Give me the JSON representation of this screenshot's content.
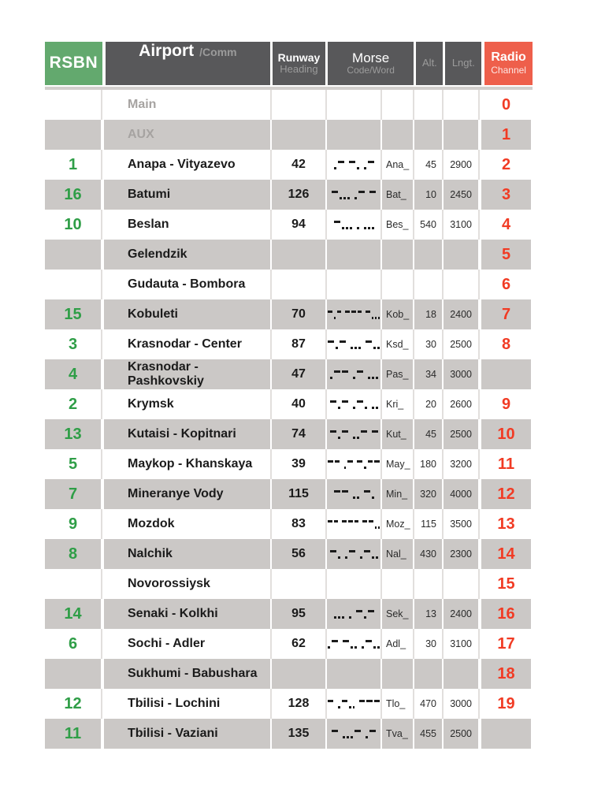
{
  "chart_data": {
    "type": "table",
    "title": "RSBN radio channel reference table",
    "header": {
      "rsbn": "RSBN",
      "airport": "Airport",
      "airport_sub": "/Comm",
      "runway": "Runway",
      "runway_sub": "Heading",
      "morse": "Morse",
      "morse_sub": "Code/Word",
      "alt": "Alt.",
      "lngt": "Lngt.",
      "radio": "Radio",
      "radio_sub": "Channel"
    },
    "colors": {
      "rsbn_header_green": "#63a96e",
      "rsbn_number_green": "#2f9e47",
      "radio_header_red": "#ee5f4b",
      "radio_number_red": "#f13b24",
      "dark_header_gray": "#58585a",
      "alt_row_gray": "#cbc8c6",
      "muted_text_gray": "#a6a3a1"
    },
    "rows": [
      {
        "rsbn": "",
        "airport": "Main",
        "muted": true,
        "runway": "",
        "morse": "",
        "word": "",
        "alt": "",
        "lngt": "",
        "channel": "0"
      },
      {
        "rsbn": "",
        "airport": "AUX",
        "muted": true,
        "runway": "",
        "morse": "",
        "word": "",
        "alt": "",
        "lngt": "",
        "channel": "1"
      },
      {
        "rsbn": "1",
        "airport": "Anapa - Vityazevo",
        "muted": false,
        "runway": "42",
        "morse": ".- -. .-",
        "word": "Ana_",
        "alt": "45",
        "lngt": "2900",
        "channel": "2"
      },
      {
        "rsbn": "16",
        "airport": "Batumi",
        "muted": false,
        "runway": "126",
        "morse": "-... .- -",
        "word": "Bat_",
        "alt": "10",
        "lngt": "2450",
        "channel": "3"
      },
      {
        "rsbn": "10",
        "airport": "Beslan",
        "muted": false,
        "runway": "94",
        "morse": "-... . ...",
        "word": "Bes_",
        "alt": "540",
        "lngt": "3100",
        "channel": "4"
      },
      {
        "rsbn": "",
        "airport": "Gelendzik",
        "muted": false,
        "runway": "",
        "morse": "",
        "word": "",
        "alt": "",
        "lngt": "",
        "channel": "5"
      },
      {
        "rsbn": "",
        "airport": "Gudauta - Bombora",
        "muted": false,
        "runway": "",
        "morse": "",
        "word": "",
        "alt": "",
        "lngt": "",
        "channel": "6"
      },
      {
        "rsbn": "15",
        "airport": "Kobuleti",
        "muted": false,
        "runway": "70",
        "morse": "-.- --- -...",
        "word": "Kob_",
        "alt": "18",
        "lngt": "2400",
        "channel": "7"
      },
      {
        "rsbn": "3",
        "airport": "Krasnodar - Center",
        "muted": false,
        "runway": "87",
        "morse": "-.- ... -..",
        "word": "Ksd_",
        "alt": "30",
        "lngt": "2500",
        "channel": "8"
      },
      {
        "rsbn": "4",
        "airport": "Krasnodar - Pashkovskiy",
        "muted": false,
        "runway": "47",
        "morse": ".-- .- ...",
        "word": "Pas_",
        "alt": "34",
        "lngt": "3000",
        "channel": ""
      },
      {
        "rsbn": "2",
        "airport": "Krymsk",
        "muted": false,
        "runway": "40",
        "morse": "-.- .-. ..",
        "word": "Kri_",
        "alt": "20",
        "lngt": "2600",
        "channel": "9"
      },
      {
        "rsbn": "13",
        "airport": "Kutaisi - Kopitnari",
        "muted": false,
        "runway": "74",
        "morse": "-.- ..- -",
        "word": "Kut_",
        "alt": "45",
        "lngt": "2500",
        "channel": "10"
      },
      {
        "rsbn": "5",
        "airport": "Maykop - Khanskaya",
        "muted": false,
        "runway": "39",
        "morse": "-- .- -.--",
        "word": "May_",
        "alt": "180",
        "lngt": "3200",
        "channel": "11"
      },
      {
        "rsbn": "7",
        "airport": "Mineranye Vody",
        "muted": false,
        "runway": "115",
        "morse": "-- .. -.",
        "word": "Min_",
        "alt": "320",
        "lngt": "4000",
        "channel": "12"
      },
      {
        "rsbn": "9",
        "airport": "Mozdok",
        "muted": false,
        "runway": "83",
        "morse": "-- --- --..",
        "word": "Moz_",
        "alt": "115",
        "lngt": "3500",
        "channel": "13"
      },
      {
        "rsbn": "8",
        "airport": "Nalchik",
        "muted": false,
        "runway": "56",
        "morse": "-. .- .-..",
        "word": "Nal_",
        "alt": "430",
        "lngt": "2300",
        "channel": "14"
      },
      {
        "rsbn": "",
        "airport": "Novorossiysk",
        "muted": false,
        "runway": "",
        "morse": "",
        "word": "",
        "alt": "",
        "lngt": "",
        "channel": "15"
      },
      {
        "rsbn": "14",
        "airport": "Senaki - Kolkhi",
        "muted": false,
        "runway": "95",
        "morse": "... . -.-",
        "word": "Sek_",
        "alt": "13",
        "lngt": "2400",
        "channel": "16"
      },
      {
        "rsbn": "6",
        "airport": "Sochi - Adler",
        "muted": false,
        "runway": "62",
        "morse": ".- -.. .-..",
        "word": "Adl_",
        "alt": "30",
        "lngt": "3100",
        "channel": "17"
      },
      {
        "rsbn": "",
        "airport": "Sukhumi - Babushara",
        "muted": false,
        "runway": "",
        "morse": "",
        "word": "",
        "alt": "",
        "lngt": "",
        "channel": "18"
      },
      {
        "rsbn": "12",
        "airport": "Tbilisi - Lochini",
        "muted": false,
        "runway": "128",
        "morse": "- .-.. ---",
        "word": "Tlo_",
        "alt": "470",
        "lngt": "3000",
        "channel": "19"
      },
      {
        "rsbn": "11",
        "airport": "Tbilisi - Vaziani",
        "muted": false,
        "runway": "135",
        "morse": "- ...- .-",
        "word": "Tva_",
        "alt": "455",
        "lngt": "2500",
        "channel": ""
      }
    ]
  }
}
